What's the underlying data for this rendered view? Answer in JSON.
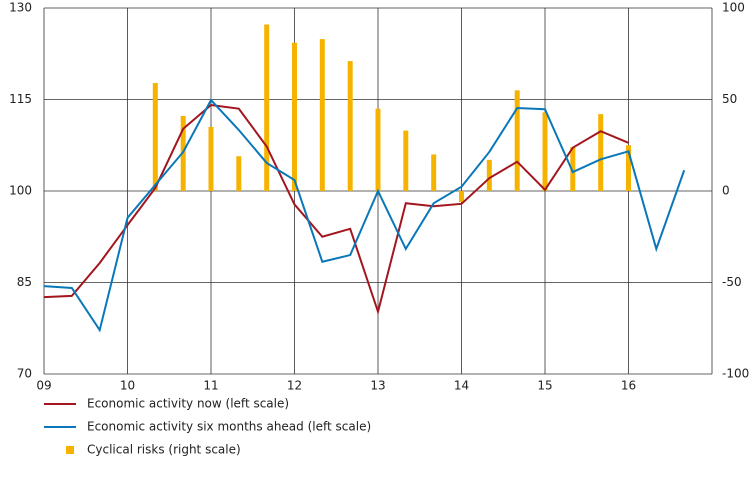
{
  "chart_data": {
    "type": "combo",
    "x": [
      2009,
      2009.333,
      2009.667,
      2010,
      2010.333,
      2010.667,
      2011,
      2011.333,
      2011.667,
      2012,
      2012.333,
      2012.667,
      2013,
      2013.333,
      2013.667,
      2014,
      2014.333,
      2014.667,
      2015,
      2015.333,
      2015.667,
      2016,
      2016.333,
      2016.667
    ],
    "series": [
      {
        "name": "Economic activity now (left scale)",
        "type": "line",
        "color": "#a3161f",
        "values": [
          82.6,
          82.8,
          88.2,
          94.4,
          100.5,
          110.2,
          114.1,
          113.5,
          107.3,
          97.8,
          92.5,
          93.8,
          80.2,
          98.0,
          97.5,
          97.9,
          102.1,
          104.8,
          100.2,
          107.1,
          109.8,
          107.9,
          null,
          null
        ]
      },
      {
        "name": "Economic activity six months ahead (left scale)",
        "type": "line",
        "color": "#0a78b8",
        "values": [
          84.4,
          84.1,
          77.2,
          95.6,
          101.0,
          106.4,
          114.9,
          110.0,
          104.6,
          101.8,
          88.4,
          89.5,
          100.0,
          90.5,
          98.0,
          100.7,
          106.4,
          113.6,
          113.4,
          103.1,
          105.2,
          106.5,
          90.5,
          103.4
        ]
      },
      {
        "name": "Cyclical risks (right scale)",
        "type": "bar",
        "axis": "y2",
        "color": "#f5b300",
        "values": [
          null,
          null,
          null,
          null,
          59,
          41,
          35,
          19,
          91,
          81,
          83,
          71,
          45,
          33,
          20,
          -6,
          17,
          55,
          43,
          24,
          42,
          25,
          null,
          null
        ]
      }
    ],
    "xlim": [
      2009,
      2017
    ],
    "xticks": [
      {
        "value": 2009,
        "label": "09"
      },
      {
        "value": 2010,
        "label": "10"
      },
      {
        "value": 2011,
        "label": "11"
      },
      {
        "value": 2012,
        "label": "12"
      },
      {
        "value": 2013,
        "label": "13"
      },
      {
        "value": 2014,
        "label": "14"
      },
      {
        "value": 2015,
        "label": "15"
      },
      {
        "value": 2016,
        "label": "16"
      }
    ],
    "ylim": [
      70,
      130
    ],
    "yticks": [
      70,
      85,
      100,
      115,
      130
    ],
    "y2lim": [
      -100,
      100
    ],
    "y2ticks": [
      -100,
      -50,
      0,
      50,
      100
    ],
    "grid": true,
    "legend": "bottom"
  }
}
